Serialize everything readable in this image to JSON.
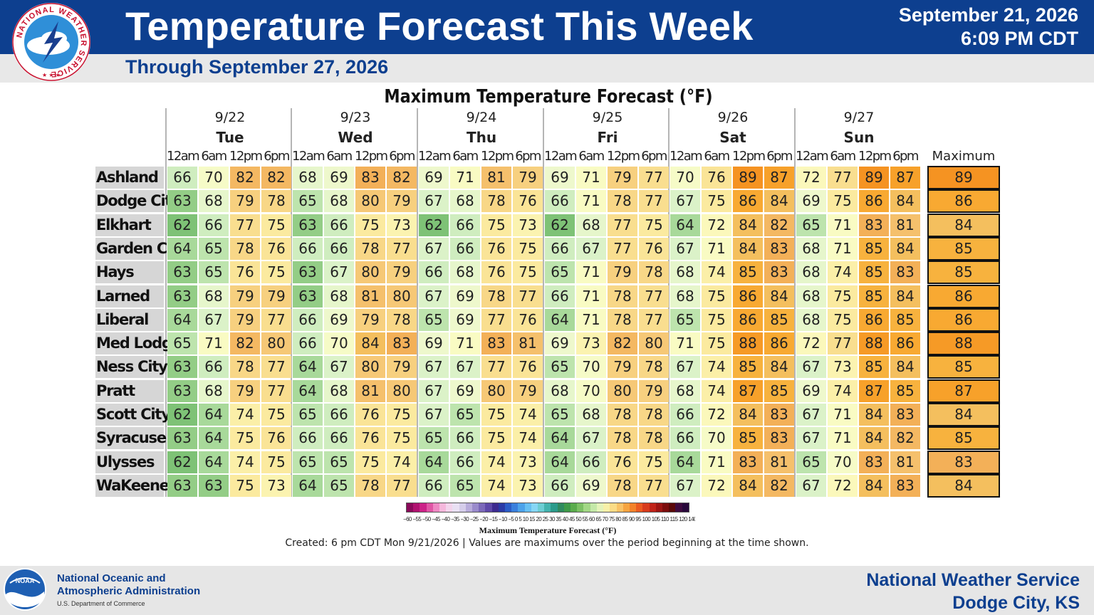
{
  "header": {
    "title": "Temperature Forecast This Week",
    "subtitle": "Through September 27, 2026",
    "date": "September 21, 2026",
    "time": "6:09 PM CDT",
    "logo_text": "NATIONAL WEATHER SERVICE"
  },
  "table": {
    "title": "Maximum Temperature Forecast (°F)",
    "days": [
      {
        "date": "9/22",
        "day": "Tue"
      },
      {
        "date": "9/23",
        "day": "Wed"
      },
      {
        "date": "9/24",
        "day": "Thu"
      },
      {
        "date": "9/25",
        "day": "Fri"
      },
      {
        "date": "9/26",
        "day": "Sat"
      },
      {
        "date": "9/27",
        "day": "Sun"
      }
    ],
    "times": [
      "12am",
      "6am",
      "12pm",
      "6pm"
    ],
    "max_header": "Maximum",
    "rows": [
      {
        "name": "Ashland",
        "values": [
          66,
          70,
          82,
          82,
          68,
          69,
          83,
          82,
          69,
          71,
          81,
          79,
          69,
          71,
          79,
          77,
          70,
          76,
          89,
          87,
          72,
          77,
          89,
          87
        ],
        "max": 89
      },
      {
        "name": "Dodge City",
        "values": [
          63,
          68,
          79,
          78,
          65,
          68,
          80,
          79,
          67,
          68,
          78,
          76,
          66,
          71,
          78,
          77,
          67,
          75,
          86,
          84,
          69,
          75,
          86,
          84
        ],
        "max": 86
      },
      {
        "name": "Elkhart",
        "values": [
          62,
          66,
          77,
          75,
          63,
          66,
          75,
          73,
          62,
          66,
          75,
          73,
          62,
          68,
          77,
          75,
          64,
          72,
          84,
          82,
          65,
          71,
          83,
          81
        ],
        "max": 84
      },
      {
        "name": "Garden City",
        "values": [
          64,
          65,
          78,
          76,
          66,
          66,
          78,
          77,
          67,
          66,
          76,
          75,
          66,
          67,
          77,
          76,
          67,
          71,
          84,
          83,
          68,
          71,
          85,
          84
        ],
        "max": 85
      },
      {
        "name": "Hays",
        "values": [
          63,
          65,
          76,
          75,
          63,
          67,
          80,
          79,
          66,
          68,
          76,
          75,
          65,
          71,
          79,
          78,
          68,
          74,
          85,
          83,
          68,
          74,
          85,
          83
        ],
        "max": 85
      },
      {
        "name": "Larned",
        "values": [
          63,
          68,
          79,
          79,
          63,
          68,
          81,
          80,
          67,
          69,
          78,
          77,
          66,
          71,
          78,
          77,
          68,
          75,
          86,
          84,
          68,
          75,
          85,
          84
        ],
        "max": 86
      },
      {
        "name": "Liberal",
        "values": [
          64,
          67,
          79,
          77,
          66,
          69,
          79,
          78,
          65,
          69,
          77,
          76,
          64,
          71,
          78,
          77,
          65,
          75,
          86,
          85,
          68,
          75,
          86,
          85
        ],
        "max": 86
      },
      {
        "name": "Med Lodge",
        "values": [
          65,
          71,
          82,
          80,
          66,
          70,
          84,
          83,
          69,
          71,
          83,
          81,
          69,
          73,
          82,
          80,
          71,
          75,
          88,
          86,
          72,
          77,
          88,
          86
        ],
        "max": 88
      },
      {
        "name": "Ness City",
        "values": [
          63,
          66,
          78,
          77,
          64,
          67,
          80,
          79,
          67,
          67,
          77,
          76,
          65,
          70,
          79,
          78,
          67,
          74,
          85,
          84,
          67,
          73,
          85,
          84
        ],
        "max": 85
      },
      {
        "name": "Pratt",
        "values": [
          63,
          68,
          79,
          77,
          64,
          68,
          81,
          80,
          67,
          69,
          80,
          79,
          68,
          70,
          80,
          79,
          68,
          74,
          87,
          85,
          69,
          74,
          87,
          85
        ],
        "max": 87
      },
      {
        "name": "Scott City",
        "values": [
          62,
          64,
          74,
          75,
          65,
          66,
          76,
          75,
          67,
          65,
          75,
          74,
          65,
          68,
          78,
          78,
          66,
          72,
          84,
          83,
          67,
          71,
          84,
          83
        ],
        "max": 84
      },
      {
        "name": "Syracuse",
        "values": [
          63,
          64,
          75,
          76,
          66,
          66,
          76,
          75,
          65,
          66,
          75,
          74,
          64,
          67,
          78,
          78,
          66,
          70,
          85,
          83,
          67,
          71,
          84,
          82
        ],
        "max": 85
      },
      {
        "name": "Ulysses",
        "values": [
          62,
          64,
          74,
          75,
          65,
          65,
          75,
          74,
          64,
          66,
          74,
          73,
          64,
          66,
          76,
          75,
          64,
          71,
          83,
          81,
          65,
          70,
          83,
          81
        ],
        "max": 83
      },
      {
        "name": "WaKeeney",
        "values": [
          63,
          63,
          75,
          73,
          64,
          65,
          78,
          77,
          66,
          65,
          74,
          73,
          66,
          69,
          78,
          77,
          67,
          72,
          84,
          82,
          67,
          72,
          84,
          83
        ],
        "max": 84
      }
    ]
  },
  "legend": {
    "label": "Maximum Temperature Forecast (°F)",
    "ticks": "−60 −55 −50 −45 −40 −35 −30 −25 −20 −15 −10 −5 0 5 10 15 20 25 30 35 40 45 50 55 60 65 70 75 80 85 90 95 100 105 110 115 120 140",
    "colors": [
      "#8a0a5a",
      "#b0126f",
      "#cc2288",
      "#e055a5",
      "#ee88c3",
      "#f5b7dc",
      "#f3d4ec",
      "#e9e0f3",
      "#d5cdea",
      "#b8acdb",
      "#9a8bcb",
      "#7b68b9",
      "#5e48a8",
      "#3d2a8f",
      "#2a3aa5",
      "#2b5cc6",
      "#3a7fdc",
      "#4ca2ea",
      "#67c0f2",
      "#86d6f5",
      "#6ccdd3",
      "#43b3ae",
      "#2a9a8a",
      "#2e8a5e",
      "#3e9a48",
      "#5aab4c",
      "#7cc064",
      "#a2d785",
      "#c4e8a8",
      "#e4f3b9",
      "#f7f0a8",
      "#fbdc86",
      "#f9c266",
      "#f6a440",
      "#f2822a",
      "#ea5a20",
      "#d83b1c",
      "#bf2218",
      "#9c1412",
      "#7a0c0c",
      "#5a0808",
      "#3e0a3e",
      "#28083a"
    ]
  },
  "created": "Created: 6 pm CDT Mon 9/21/2026  |  Values are maximums over the period beginning at the time shown.",
  "footer": {
    "noaa_line1": "National Oceanic and",
    "noaa_line2": "Atmospheric Administration",
    "noaa_line3": "U.S. Department of Commerce",
    "noaa_logo_text": "NOAA",
    "office_line1": "National Weather Service",
    "office_line2": "Dodge City, KS"
  },
  "colors": {
    "header_blue": "#0d3f8f",
    "temp_scale": {
      "62": "#7ec276",
      "63": "#93cd86",
      "64": "#a8d99a",
      "65": "#bde4ad",
      "66": "#cfedbf",
      "67": "#dbf2c8",
      "68": "#e6f6cb",
      "69": "#eef8cc",
      "70": "#f6fbc7",
      "71": "#f9fbc3",
      "72": "#fbf8bb",
      "73": "#fbf3b0",
      "74": "#fbefa8",
      "75": "#fbea9f",
      "76": "#fae497",
      "77": "#f9de8f",
      "78": "#f8d787",
      "79": "#f7d07f",
      "80": "#f6c876",
      "81": "#f5c06c",
      "82": "#f4b862",
      "83": "#f3b058",
      "84": "#f4bf5e",
      "85": "#f7b23e",
      "86": "#f8a932",
      "87": "#f7a12a",
      "88": "#f69a26",
      "89": "#f59322"
    }
  }
}
